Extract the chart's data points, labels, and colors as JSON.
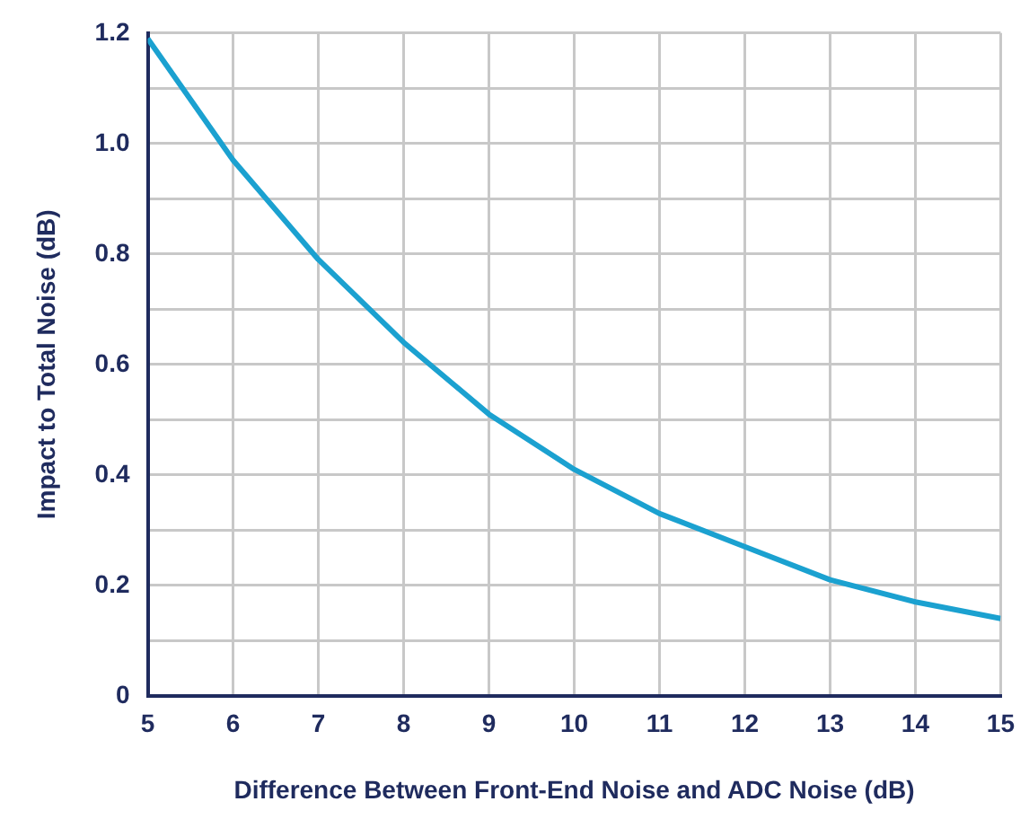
{
  "chart_data": {
    "type": "line",
    "xlabel": "Difference Between Front-End Noise and ADC Noise (dB)",
    "ylabel": "Impact to Total Noise (dB)",
    "x": [
      5,
      6,
      7,
      8,
      9,
      10,
      11,
      12,
      13,
      14,
      15
    ],
    "series": [
      {
        "color": "#1ba1d0",
        "values": [
          1.19,
          0.97,
          0.79,
          0.64,
          0.51,
          0.41,
          0.33,
          0.27,
          0.21,
          0.17,
          0.14
        ]
      }
    ],
    "xlim": [
      5,
      15
    ],
    "xticks": [
      5,
      6,
      7,
      8,
      9,
      10,
      11,
      12,
      13,
      14,
      15
    ],
    "ylim": [
      0,
      1.2
    ],
    "yticks": [
      "0",
      {
        "value": 0.1,
        "label": null
      },
      0.2,
      {
        "value": 0.3,
        "label": null
      },
      0.4,
      {
        "value": 0.5,
        "label": null
      },
      0.6,
      {
        "value": 0.7,
        "label": null
      },
      0.8,
      {
        "value": 0.9,
        "label": null
      },
      "1.0",
      {
        "value": 1.1,
        "label": null
      },
      1.2
    ],
    "grid": true,
    "legend": false,
    "marker": "none",
    "line_style": "solid"
  }
}
